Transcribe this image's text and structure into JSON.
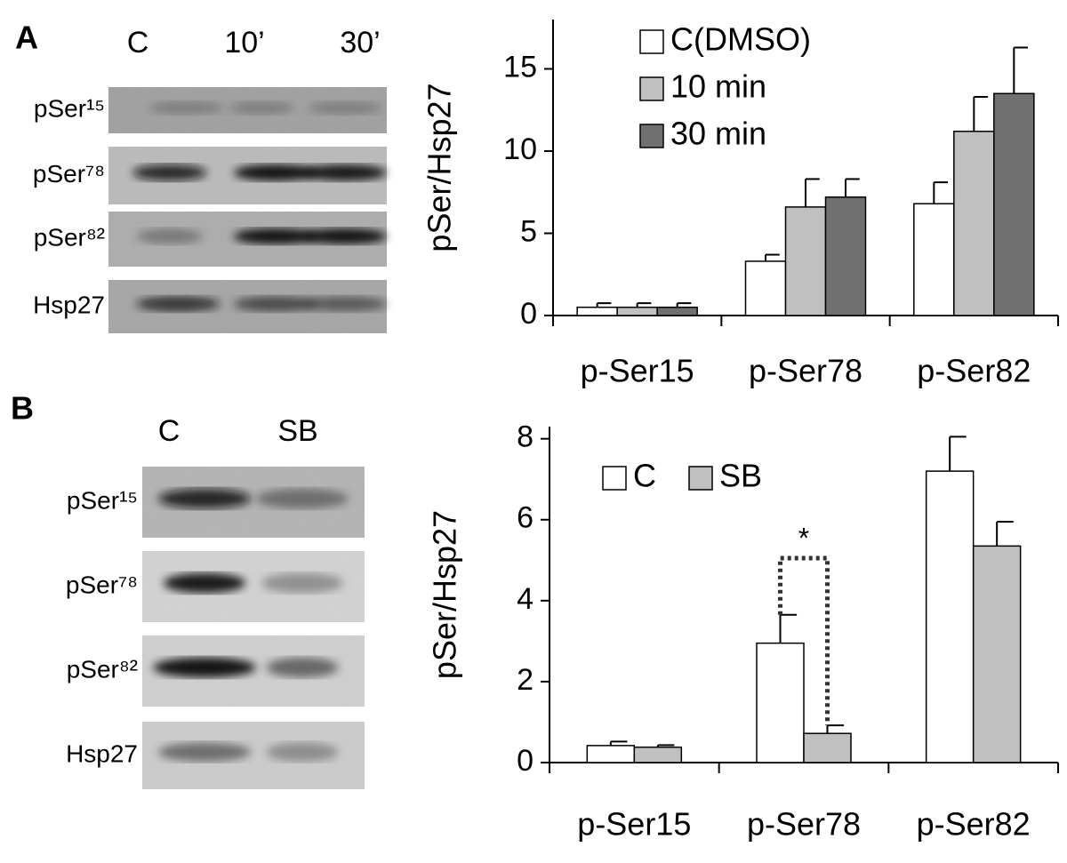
{
  "panels": [
    {
      "label": "A",
      "lanes": [
        "C",
        "10’",
        "30’"
      ],
      "rows": [
        "pSer¹⁵",
        "pSer⁷⁸",
        "pSer⁸²",
        "Hsp27"
      ]
    },
    {
      "label": "B",
      "lanes": [
        "C",
        "SB"
      ],
      "rows": [
        "pSer¹⁵",
        "pSer⁷⁸",
        "pSer⁸²",
        "Hsp27"
      ]
    }
  ],
  "chart_data": [
    {
      "type": "bar",
      "y_label": "pSer/Hsp27",
      "categories": [
        "p-Ser15",
        "p-Ser78",
        "p-Ser82"
      ],
      "series": [
        {
          "name": "C(DMSO)",
          "color": "#ffffff",
          "values": [
            0.5,
            3.3,
            6.8
          ],
          "errors": [
            0.25,
            0.4,
            1.3
          ]
        },
        {
          "name": "10 min",
          "color": "#c0c0c0",
          "values": [
            0.5,
            6.6,
            11.2
          ],
          "errors": [
            0.25,
            1.7,
            2.1
          ]
        },
        {
          "name": "30 min",
          "color": "#707070",
          "values": [
            0.5,
            7.2,
            13.5
          ],
          "errors": [
            0.25,
            1.1,
            2.8
          ]
        }
      ],
      "ylim": [
        0,
        18
      ],
      "yticks": [
        0,
        5,
        10,
        15
      ],
      "legend": "top-left"
    },
    {
      "type": "bar",
      "y_label": "pSer/Hsp27",
      "categories": [
        "p-Ser15",
        "p-Ser78",
        "p-Ser82"
      ],
      "series": [
        {
          "name": "C",
          "color": "#ffffff",
          "values": [
            0.42,
            2.95,
            7.2
          ],
          "errors": [
            0.1,
            0.7,
            0.85
          ]
        },
        {
          "name": "SB",
          "color": "#c0c0c0",
          "values": [
            0.38,
            0.72,
            5.35
          ],
          "errors": [
            0.05,
            0.2,
            0.6
          ]
        }
      ],
      "ylim": [
        0,
        8.3
      ],
      "yticks": [
        0,
        2,
        4,
        6,
        8
      ],
      "legend": "top-left",
      "annotations": [
        {
          "text": "*"
        }
      ]
    }
  ]
}
